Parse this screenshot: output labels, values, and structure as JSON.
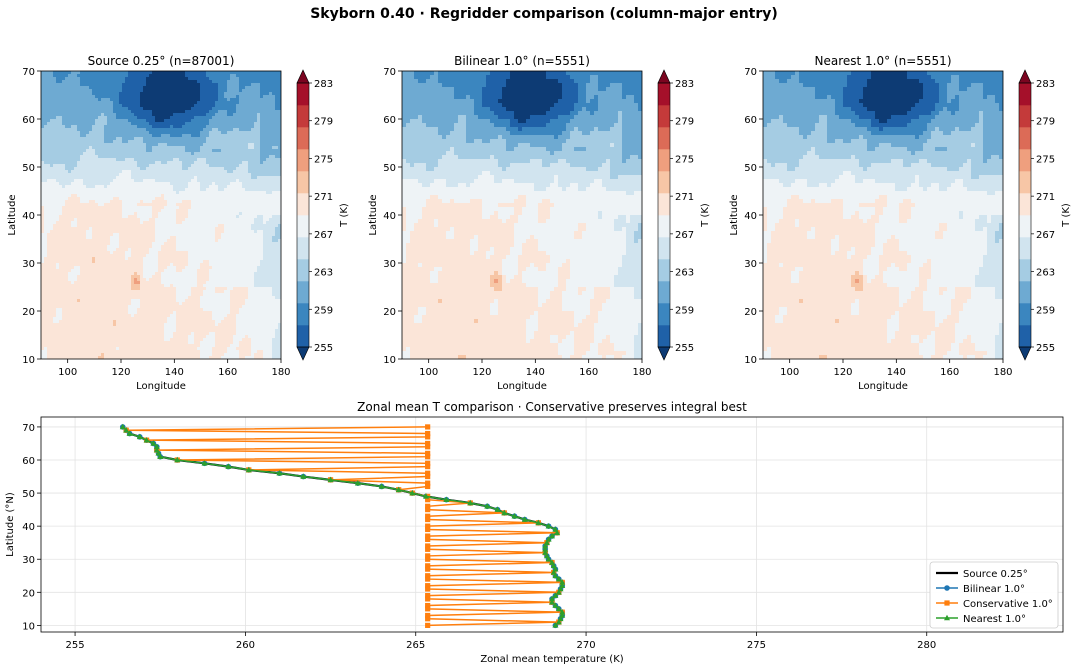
{
  "figure": {
    "suptitle": "Skyborn 0.40 · Regridder comparison (column-major entry)"
  },
  "chart_data": [
    {
      "type": "heatmap",
      "title": "Source 0.25° (n=87001)",
      "xlabel": "Longitude",
      "ylabel": "Latitude",
      "xlim": [
        90,
        180
      ],
      "ylim": [
        10,
        70
      ],
      "xticks": [
        100,
        120,
        140,
        160,
        180
      ],
      "yticks": [
        10,
        20,
        30,
        40,
        50,
        60,
        70
      ],
      "colorbar": {
        "label": "T (K)",
        "ticks": [
          255,
          259,
          263,
          267,
          271,
          275,
          279,
          283
        ],
        "range": [
          255,
          283
        ],
        "levels": 14,
        "extend": "both",
        "colors": [
          "#0d3b74",
          "#1f61a8",
          "#3b86bf",
          "#6eaad2",
          "#a5cce3",
          "#d1e4ef",
          "#eef3f6",
          "#fbe5d8",
          "#f7c6a6",
          "#ef9f7e",
          "#dc6b57",
          "#c43a3a",
          "#a5102a",
          "#7b0520"
        ]
      }
    },
    {
      "type": "heatmap",
      "title": "Bilinear 1.0° (n=5551)",
      "xlabel": "Longitude",
      "ylabel": "Latitude",
      "xlim": [
        90,
        180
      ],
      "ylim": [
        10,
        70
      ],
      "xticks": [
        100,
        120,
        140,
        160,
        180
      ],
      "yticks": [
        10,
        20,
        30,
        40,
        50,
        60,
        70
      ],
      "colorbar": {
        "label": "T (K)",
        "ticks": [
          255,
          259,
          263,
          267,
          271,
          275,
          279,
          283
        ],
        "range": [
          255,
          283
        ],
        "levels": 14,
        "extend": "both",
        "colors": [
          "#0d3b74",
          "#1f61a8",
          "#3b86bf",
          "#6eaad2",
          "#a5cce3",
          "#d1e4ef",
          "#eef3f6",
          "#fbe5d8",
          "#f7c6a6",
          "#ef9f7e",
          "#dc6b57",
          "#c43a3a",
          "#a5102a",
          "#7b0520"
        ]
      }
    },
    {
      "type": "heatmap",
      "title": "Nearest 1.0° (n=5551)",
      "xlabel": "Longitude",
      "ylabel": "Latitude",
      "xlim": [
        90,
        180
      ],
      "ylim": [
        10,
        70
      ],
      "xticks": [
        100,
        120,
        140,
        160,
        180
      ],
      "yticks": [
        10,
        20,
        30,
        40,
        50,
        60,
        70
      ],
      "colorbar": {
        "label": "T (K)",
        "ticks": [
          255,
          259,
          263,
          267,
          271,
          275,
          279,
          283
        ],
        "range": [
          255,
          283
        ],
        "levels": 14,
        "extend": "both",
        "colors": [
          "#0d3b74",
          "#1f61a8",
          "#3b86bf",
          "#6eaad2",
          "#a5cce3",
          "#d1e4ef",
          "#eef3f6",
          "#fbe5d8",
          "#f7c6a6",
          "#ef9f7e",
          "#dc6b57",
          "#c43a3a",
          "#a5102a",
          "#7b0520"
        ]
      }
    },
    {
      "type": "line",
      "title": "Zonal mean T comparison · Conservative preserves integral best",
      "xlabel": "Zonal mean temperature (K)",
      "ylabel": "Latitude (°N)",
      "xlim": [
        254,
        284
      ],
      "ylim": [
        8,
        73
      ],
      "xticks": [
        255,
        260,
        265,
        270,
        275,
        280
      ],
      "yticks": [
        10,
        20,
        30,
        40,
        50,
        60,
        70
      ],
      "grid": true,
      "legend": "lower-right",
      "lat": [
        70,
        69,
        68,
        67,
        66,
        65,
        64,
        63,
        62,
        61,
        60,
        59,
        58,
        57,
        56,
        55,
        54,
        53,
        52,
        51,
        50,
        49,
        48,
        47,
        46,
        45,
        44,
        43,
        42,
        41,
        40,
        39,
        38,
        37,
        36,
        35,
        34,
        33,
        32,
        31,
        30,
        29,
        28,
        27,
        26,
        25,
        24,
        23,
        22,
        21,
        20,
        19,
        18,
        17,
        16,
        15,
        14,
        13,
        12,
        11,
        10
      ],
      "series": [
        {
          "name": "Source 0.25°",
          "color": "#000000",
          "marker": "none",
          "values": [
            256.4,
            256.5,
            256.6,
            256.9,
            257.1,
            257.3,
            257.4,
            257.4,
            257.45,
            257.5,
            258.0,
            258.8,
            259.5,
            260.1,
            261.0,
            261.7,
            262.5,
            263.3,
            264.0,
            264.5,
            264.9,
            265.3,
            265.9,
            266.6,
            267.1,
            267.4,
            267.6,
            267.9,
            268.2,
            268.6,
            268.9,
            269.1,
            269.15,
            269.0,
            268.9,
            268.85,
            268.8,
            268.8,
            268.8,
            268.85,
            268.9,
            269.0,
            269.05,
            269.1,
            269.05,
            269.1,
            269.2,
            269.3,
            269.3,
            269.25,
            269.2,
            269.1,
            269.0,
            269.0,
            269.1,
            269.2,
            269.3,
            269.3,
            269.25,
            269.2,
            269.1
          ]
        },
        {
          "name": "Bilinear 1.0°",
          "color": "#1f77b4",
          "marker": "circle",
          "values": [
            256.4,
            256.5,
            256.6,
            256.9,
            257.1,
            257.3,
            257.4,
            257.4,
            257.45,
            257.5,
            258.0,
            258.8,
            259.5,
            260.1,
            261.0,
            261.7,
            262.5,
            263.3,
            264.0,
            264.5,
            264.9,
            265.3,
            265.9,
            266.6,
            267.1,
            267.4,
            267.6,
            267.9,
            268.2,
            268.6,
            268.9,
            269.1,
            269.15,
            269.0,
            268.9,
            268.85,
            268.8,
            268.8,
            268.8,
            268.85,
            268.9,
            269.0,
            269.05,
            269.1,
            269.05,
            269.1,
            269.2,
            269.3,
            269.3,
            269.25,
            269.2,
            269.1,
            269.0,
            269.0,
            269.1,
            269.2,
            269.3,
            269.3,
            269.25,
            269.2,
            269.1
          ]
        },
        {
          "name": "Conservative 1.0°",
          "color": "#ff7f0e",
          "marker": "square",
          "values": [
            265.35,
            256.5,
            265.35,
            265.35,
            257.1,
            265.35,
            265.35,
            257.4,
            265.35,
            265.35,
            258.0,
            265.35,
            265.35,
            260.1,
            265.35,
            265.35,
            262.5,
            265.35,
            265.35,
            264.5,
            264.9,
            265.35,
            265.35,
            266.6,
            265.35,
            265.35,
            267.6,
            265.35,
            265.35,
            268.6,
            265.35,
            265.35,
            269.15,
            265.35,
            265.35,
            268.85,
            265.35,
            265.35,
            268.8,
            265.35,
            265.35,
            269.0,
            265.35,
            265.35,
            269.05,
            265.35,
            265.35,
            269.3,
            265.35,
            265.35,
            269.2,
            265.35,
            265.35,
            269.0,
            265.35,
            265.35,
            269.3,
            265.35,
            265.35,
            269.2,
            265.35
          ]
        },
        {
          "name": "Nearest 1.0°",
          "color": "#2ca02c",
          "marker": "triangle",
          "values": [
            256.4,
            256.5,
            256.6,
            256.9,
            257.1,
            257.3,
            257.4,
            257.4,
            257.45,
            257.5,
            258.0,
            258.8,
            259.5,
            260.1,
            261.0,
            261.7,
            262.5,
            263.3,
            264.0,
            264.5,
            264.9,
            265.3,
            265.9,
            266.6,
            267.1,
            267.4,
            267.6,
            267.9,
            268.2,
            268.6,
            268.9,
            269.1,
            269.15,
            269.0,
            268.9,
            268.85,
            268.8,
            268.8,
            268.8,
            268.85,
            268.9,
            269.0,
            269.05,
            269.1,
            269.05,
            269.1,
            269.2,
            269.3,
            269.3,
            269.25,
            269.2,
            269.1,
            269.0,
            269.0,
            269.1,
            269.2,
            269.3,
            269.3,
            269.25,
            269.2,
            269.1
          ]
        }
      ]
    }
  ]
}
